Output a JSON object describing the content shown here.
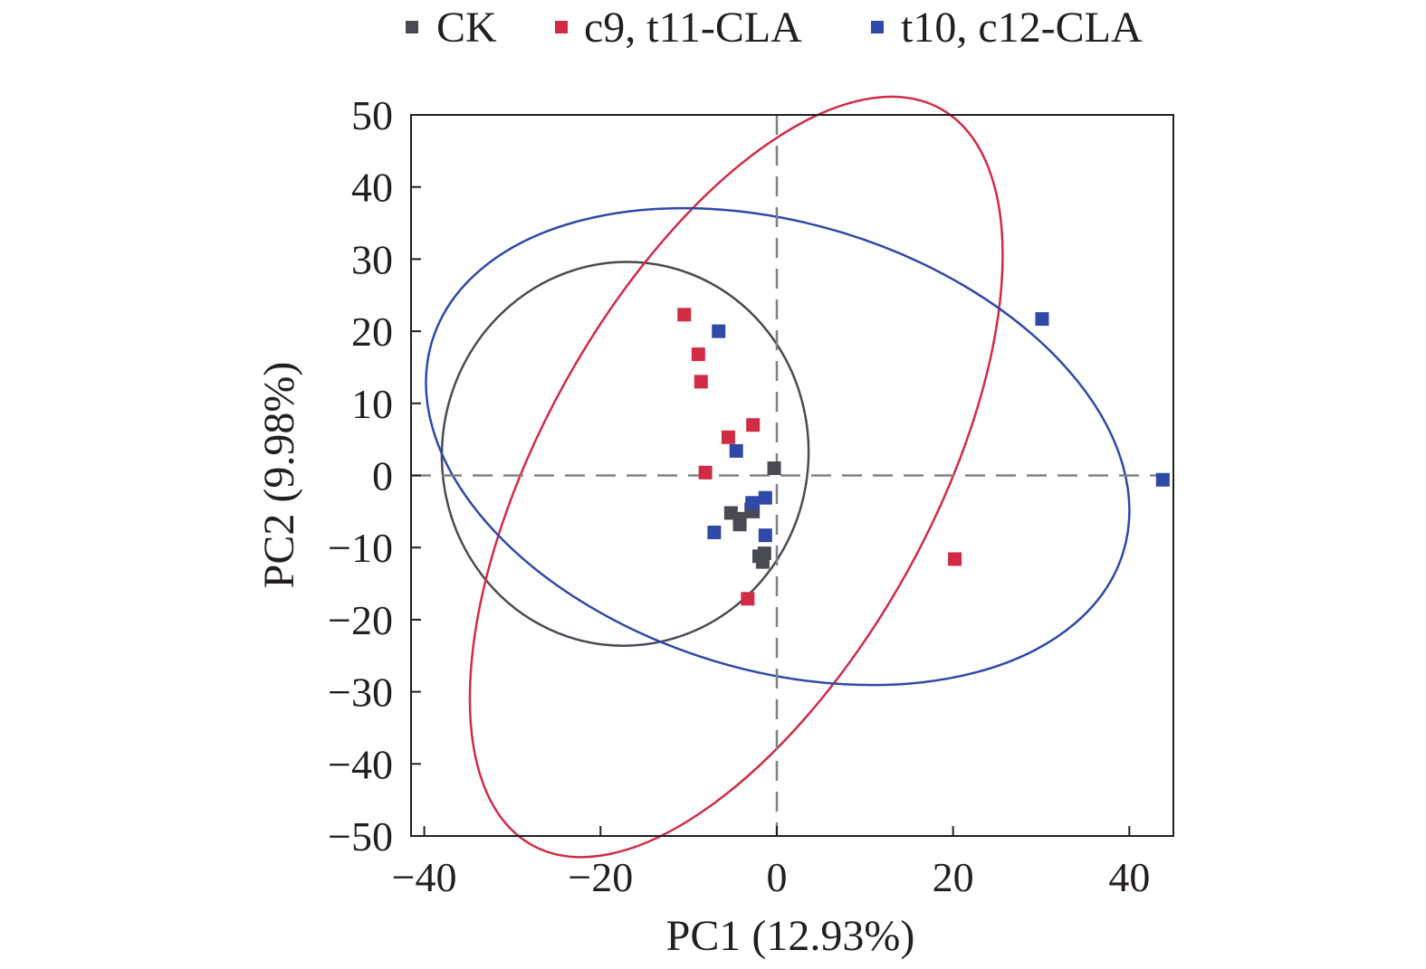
{
  "chart_data": {
    "type": "scatter",
    "xlabel": "PC1 (12.93%)",
    "ylabel": "PC2 (9.98%)",
    "xlim": [
      -41.5,
      45
    ],
    "ylim": [
      -50,
      50
    ],
    "x_ticks": [
      -40,
      -20,
      0,
      20,
      40
    ],
    "y_ticks": [
      50,
      40,
      30,
      20,
      10,
      0,
      -10,
      -20,
      -30,
      -40,
      -50
    ],
    "x_tick_labels": [
      "−40",
      "−20",
      "0",
      "20",
      "40"
    ],
    "y_tick_labels": [
      "50",
      "40",
      "30",
      "20",
      "10",
      "0",
      "−10",
      "−20",
      "−30",
      "−40",
      "−50"
    ],
    "grid": false,
    "reference_lines": {
      "x": 0,
      "y": 0,
      "style": "dashed",
      "color": "#808080"
    },
    "legend_position": "top",
    "series": [
      {
        "name": "CK",
        "color": "#4a4b52",
        "points": [
          [
            -0.3,
            1.0
          ],
          [
            -5.2,
            -5.2
          ],
          [
            -4.2,
            -6.0
          ],
          [
            -4.2,
            -6.8
          ],
          [
            -2.9,
            -4.7
          ],
          [
            -2.7,
            -5.0
          ],
          [
            -1.4,
            -10.8
          ],
          [
            -2.0,
            -11.2
          ],
          [
            -1.6,
            -12.0
          ]
        ],
        "ellipse": {
          "cx": -17.2,
          "cy": 3.0,
          "rx": 21.8,
          "ry": 25.4,
          "angle_deg": 84
        }
      },
      {
        "name": "c9, t11-CLA",
        "color": "#d22b45",
        "points": [
          [
            -10.5,
            22.3
          ],
          [
            -8.9,
            16.8
          ],
          [
            -8.6,
            13.0
          ],
          [
            -2.7,
            7.0
          ],
          [
            -5.5,
            5.3
          ],
          [
            -8.1,
            0.4
          ],
          [
            -3.3,
            -17.1
          ],
          [
            20.2,
            -11.6
          ]
        ],
        "ellipse": {
          "cx": -4.6,
          "cy": -0.2,
          "rx": 47.8,
          "ry": 27.1,
          "angle_deg": 61
        }
      },
      {
        "name": "t10, c12-CLA",
        "color": "#2e49a8",
        "points": [
          [
            -6.6,
            20.0
          ],
          [
            30.1,
            21.7
          ],
          [
            -4.6,
            3.4
          ],
          [
            -2.8,
            -3.8
          ],
          [
            -1.3,
            -3.1
          ],
          [
            -7.1,
            -7.9
          ],
          [
            -1.3,
            -8.3
          ],
          [
            43.8,
            -0.6
          ]
        ],
        "ellipse": {
          "cx": 0.1,
          "cy": 4.0,
          "rx": 41.0,
          "ry": 31.0,
          "angle_deg": -17
        }
      }
    ]
  }
}
